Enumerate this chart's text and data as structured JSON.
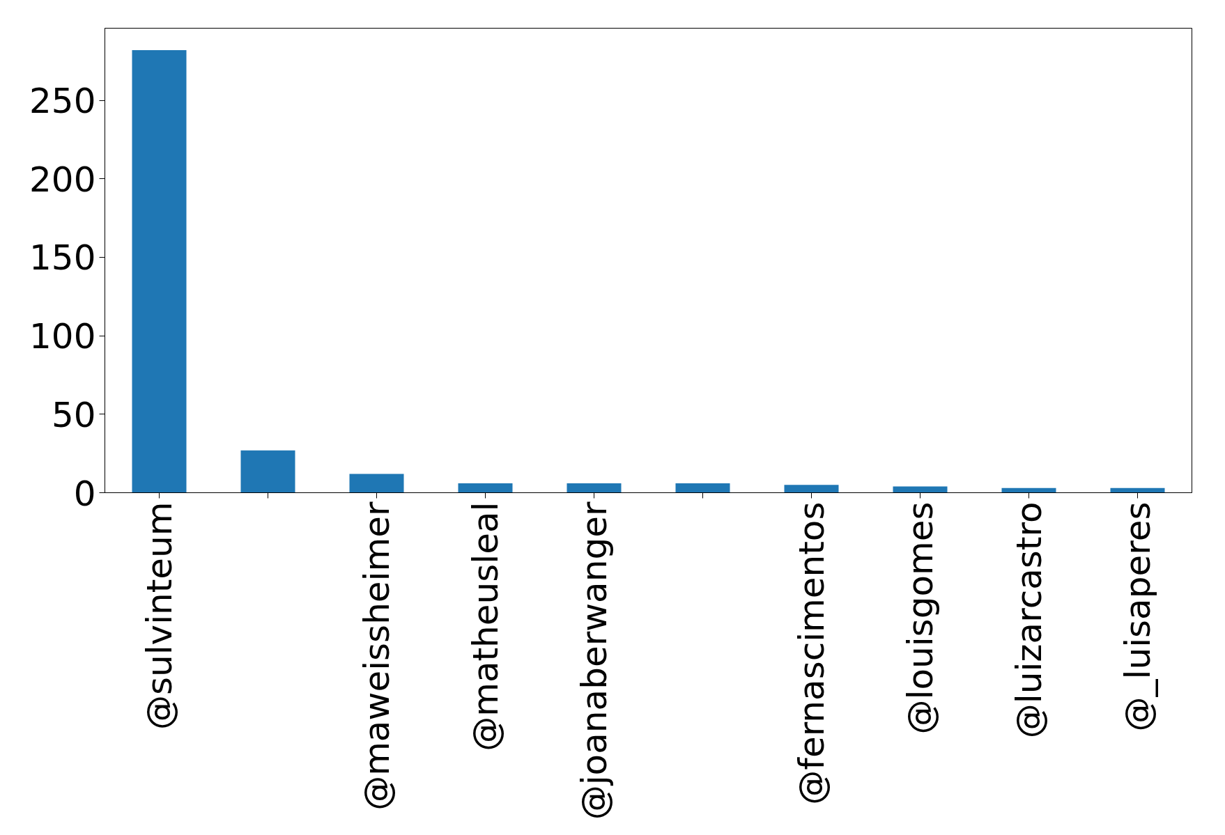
{
  "chart_data": {
    "type": "bar",
    "categories": [
      "@sulvinteum",
      null,
      "@maweissheimer",
      "@matheusleal",
      "@joanaberwanger",
      null,
      "@fernascimentos",
      "@louisgomes",
      "@luizarcastro",
      "@_luisaperes"
    ],
    "values": [
      282,
      27,
      12,
      6,
      6,
      6,
      5,
      4,
      3,
      3
    ],
    "color": "#1f77b4",
    "ylim": [
      0,
      296
    ],
    "yticks": [
      0,
      50,
      100,
      150,
      200,
      250
    ],
    "grid": false
  }
}
